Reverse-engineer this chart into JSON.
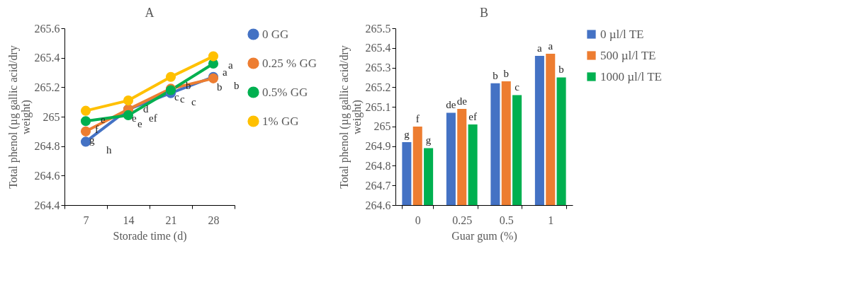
{
  "chart_data": [
    {
      "type": "line",
      "title": "A",
      "xlabel": "Storade time (d)",
      "ylabel": "Total phenol (µg gallic acid/dry weight)",
      "categories": [
        "7",
        "14",
        "21",
        "28"
      ],
      "ylim": [
        264.4,
        265.6
      ],
      "yticks": [
        264.4,
        264.6,
        264.8,
        265,
        265.2,
        265.4,
        265.6
      ],
      "grid": false,
      "legend": "right",
      "marker": "circle",
      "line_style": "solid",
      "series": [
        {
          "name": "0 GG",
          "color": "#4472c4",
          "values": [
            264.83,
            265.05,
            265.16,
            265.27
          ],
          "value_labels": [
            "h",
            "ef",
            "c",
            "b"
          ]
        },
        {
          "name": "0.25 % GG",
          "color": "#ed7d31",
          "values": [
            264.9,
            265.05,
            265.19,
            265.26
          ],
          "value_labels": [
            "g",
            "e",
            "c",
            "b"
          ]
        },
        {
          "name": "0.5% GG",
          "color": "#00b050",
          "values": [
            264.97,
            265.01,
            265.18,
            265.36
          ],
          "value_labels": [
            "f",
            "e",
            "c",
            "a"
          ]
        },
        {
          "name": "1% GG",
          "color": "#ffc000",
          "values": [
            265.04,
            265.11,
            265.27,
            265.41
          ],
          "value_labels": [
            "e",
            "d",
            "b",
            "a"
          ]
        }
      ]
    },
    {
      "type": "bar",
      "title": "B",
      "xlabel": "Guar gum (%)",
      "ylabel": "Total phenol (µg gallic acid/dry weight)",
      "categories": [
        "0",
        "0.25",
        "0.5",
        "1"
      ],
      "ylim": [
        264.6,
        265.5
      ],
      "yticks": [
        264.6,
        264.7,
        264.8,
        264.9,
        265,
        265.1,
        265.2,
        265.3,
        265.4,
        265.5
      ],
      "grid": false,
      "legend": "right",
      "series": [
        {
          "name": "0 µl/l TE",
          "color": "#4472c4",
          "values": [
            264.92,
            265.07,
            265.22,
            265.36
          ],
          "value_labels": [
            "g",
            "de",
            "b",
            "a"
          ]
        },
        {
          "name": "500  µl/l TE",
          "color": "#ed7d31",
          "values": [
            265.0,
            265.09,
            265.23,
            265.37
          ],
          "value_labels": [
            "f",
            "de",
            "b",
            "a"
          ]
        },
        {
          "name": "1000 µl/l TE",
          "color": "#00b050",
          "values": [
            264.89,
            265.01,
            265.16,
            265.25
          ],
          "value_labels": [
            "g",
            "ef",
            "c",
            "b"
          ]
        }
      ]
    }
  ]
}
